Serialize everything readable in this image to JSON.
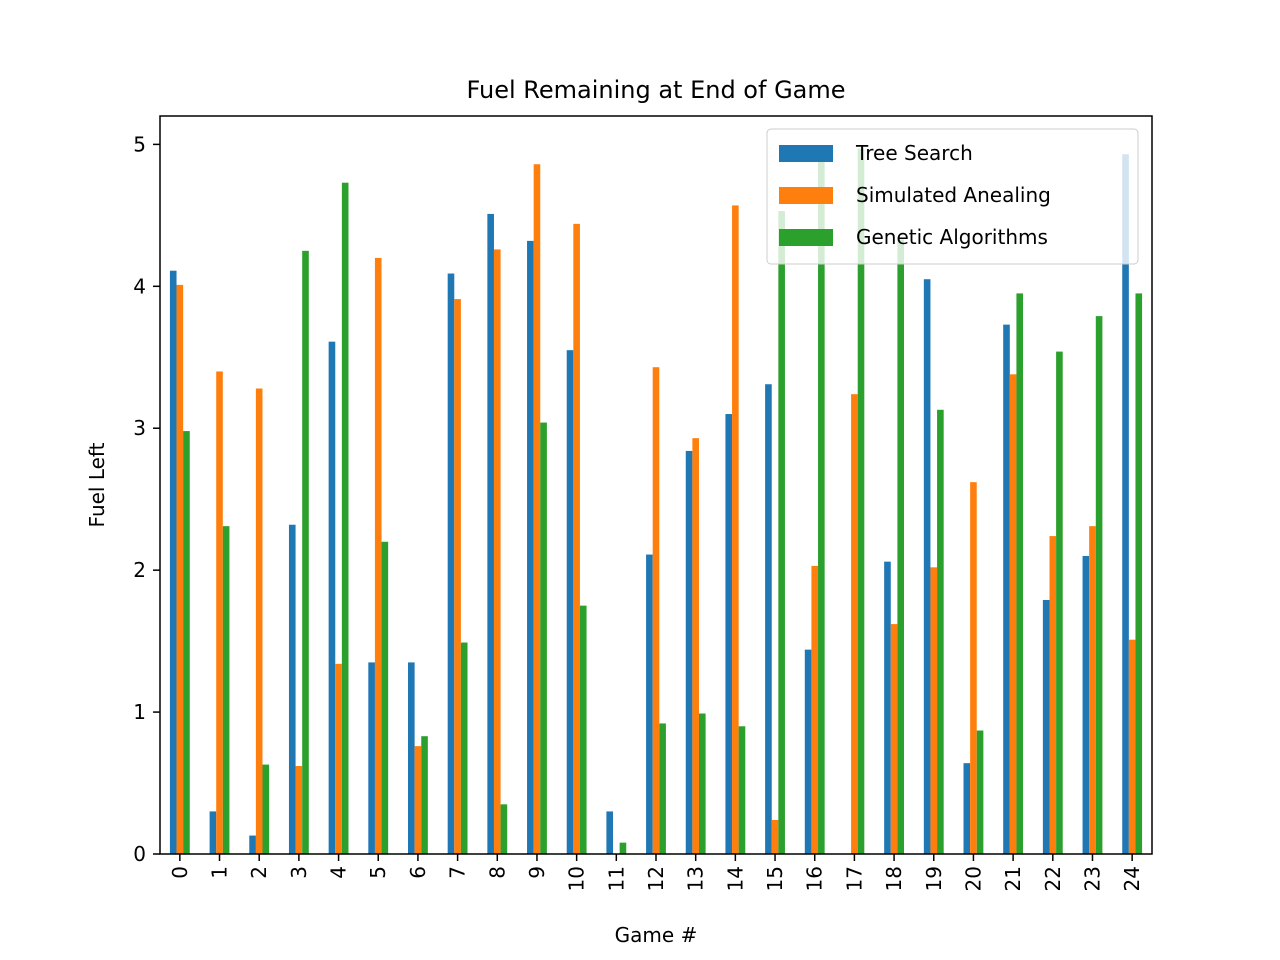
{
  "chart_data": {
    "type": "bar",
    "title": "Fuel Remaining at End of Game",
    "xlabel": "Game #",
    "ylabel": "Fuel Left",
    "ylim": [
      0,
      5.2
    ],
    "yticks": [
      0,
      1,
      2,
      3,
      4,
      5
    ],
    "grid": false,
    "legend_position": "top-right",
    "categories": [
      "0",
      "1",
      "2",
      "3",
      "4",
      "5",
      "6",
      "7",
      "8",
      "9",
      "10",
      "11",
      "12",
      "13",
      "14",
      "15",
      "16",
      "17",
      "18",
      "19",
      "20",
      "21",
      "22",
      "23",
      "24"
    ],
    "series": [
      {
        "name": "Tree Search",
        "color": "#1f77b4",
        "values": [
          4.11,
          0.3,
          0.13,
          2.32,
          3.61,
          1.35,
          1.35,
          4.09,
          4.51,
          4.32,
          3.55,
          0.3,
          2.11,
          2.84,
          3.1,
          3.31,
          1.44,
          0.0,
          2.06,
          4.05,
          0.64,
          3.73,
          1.79,
          2.1,
          4.93
        ]
      },
      {
        "name": "Simulated Anealing",
        "color": "#ff7f0e",
        "values": [
          4.01,
          3.4,
          3.28,
          0.62,
          1.34,
          4.2,
          0.76,
          3.91,
          4.26,
          4.86,
          4.44,
          0.0,
          3.43,
          2.93,
          4.57,
          0.24,
          2.03,
          3.24,
          1.62,
          2.02,
          2.62,
          3.38,
          2.24,
          2.31,
          1.51
        ]
      },
      {
        "name": "Genetic Algorithms",
        "color": "#2ca02c",
        "values": [
          2.98,
          2.31,
          0.63,
          4.25,
          4.73,
          2.2,
          0.83,
          1.49,
          0.35,
          3.04,
          1.75,
          0.08,
          0.92,
          0.99,
          0.9,
          4.53,
          4.9,
          4.97,
          4.33,
          3.13,
          0.87,
          3.95,
          3.54,
          3.79,
          3.95
        ]
      }
    ]
  }
}
